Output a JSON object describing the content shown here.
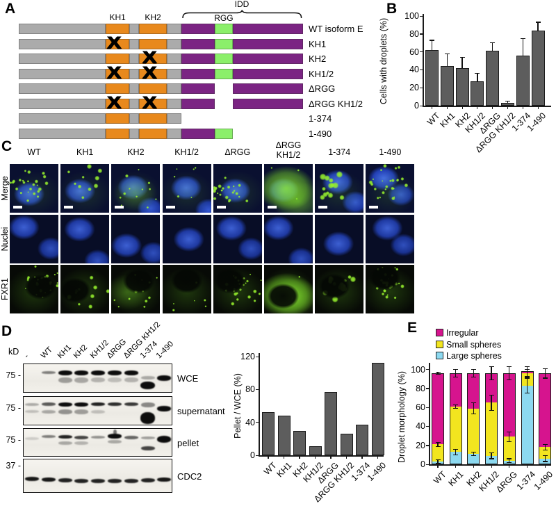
{
  "colors": {
    "domain_gray": "#ababab",
    "domain_orange": "#e8891d",
    "domain_purple": "#7b2483",
    "domain_green": "#8bef6a",
    "bar_gray": "#5d5d5d",
    "magenta": "#d6148e",
    "yellow": "#f2e51f",
    "light_blue": "#8cd9f0",
    "micro_navy": "#0a1030",
    "micro_blue": "#2d55dd",
    "micro_green": "#8cf022"
  },
  "panel_a": {
    "label": "A",
    "idd_label": "IDD",
    "rgg_label": "RGG",
    "kh1_label": "KH1",
    "kh2_label": "KH2",
    "constructs": [
      {
        "label": "WT isoform E",
        "x_kh1": false,
        "x_kh2": false,
        "cterm": "full"
      },
      {
        "label": "KH1",
        "x_kh1": true,
        "x_kh2": false,
        "cterm": "full"
      },
      {
        "label": "KH2",
        "x_kh1": false,
        "x_kh2": true,
        "cterm": "full"
      },
      {
        "label": "KH1/2",
        "x_kh1": true,
        "x_kh2": true,
        "cterm": "full"
      },
      {
        "label": "ΔRGG",
        "x_kh1": false,
        "x_kh2": false,
        "cterm": "delta_rgg"
      },
      {
        "label": "ΔRGG KH1/2",
        "x_kh1": true,
        "x_kh2": true,
        "cterm": "delta_rgg"
      },
      {
        "label": "1-374",
        "x_kh1": false,
        "x_kh2": false,
        "cterm": "end374"
      },
      {
        "label": "1-490",
        "x_kh1": false,
        "x_kh2": false,
        "cterm": "end490"
      }
    ]
  },
  "panel_b": {
    "label": "B"
  },
  "panel_c": {
    "label": "C",
    "columns": [
      {
        "header": "WT",
        "two_line": false,
        "pattern": "puncta_many"
      },
      {
        "header": "KH1",
        "two_line": false,
        "pattern": "puncta_few"
      },
      {
        "header": "KH2",
        "two_line": false,
        "pattern": "diffuse_puncta"
      },
      {
        "header": "KH1/2",
        "two_line": false,
        "pattern": "sparse"
      },
      {
        "header": "ΔRGG",
        "two_line": false,
        "pattern": "puncta_many"
      },
      {
        "header": "ΔRGG KH1/2",
        "two_line": true,
        "pattern": "diffuse"
      },
      {
        "header": "1-374",
        "two_line": false,
        "pattern": "spheres"
      },
      {
        "header": "1-490",
        "two_line": false,
        "pattern": "puncta_many"
      }
    ],
    "rows": [
      {
        "label": "Merge",
        "type": "merge"
      },
      {
        "label": "Nuclei",
        "type": "nuclei"
      },
      {
        "label": "FXR1",
        "type": "green"
      }
    ]
  },
  "panel_d": {
    "label": "D",
    "kd_label": "kD",
    "lanes": [
      "-",
      "WT",
      "KH1",
      "KH2",
      "KH1/2",
      "ΔRGG",
      "ΔRGG KH1/2",
      "1-374",
      "1-490"
    ],
    "blots": [
      {
        "name": "WCE",
        "marker": "75",
        "bands": [
          [
            1,
            0.24,
            0.5,
            4
          ],
          [
            2,
            0.22,
            1,
            7
          ],
          [
            3,
            0.22,
            1,
            7
          ],
          [
            4,
            0.22,
            1,
            7
          ],
          [
            5,
            0.22,
            1,
            7
          ],
          [
            6,
            0.22,
            1,
            7
          ],
          [
            2,
            0.45,
            0.35,
            8
          ],
          [
            3,
            0.45,
            0.3,
            8
          ],
          [
            4,
            0.45,
            0.25,
            7
          ],
          [
            5,
            0.45,
            0.2,
            7
          ],
          [
            6,
            0.45,
            0.25,
            7
          ],
          [
            7,
            0.6,
            1,
            11,
            21
          ],
          [
            7,
            0.4,
            0.3,
            5
          ],
          [
            8,
            0.38,
            1,
            8
          ]
        ]
      },
      {
        "name": "supernatant",
        "marker": "75",
        "bands": [
          [
            0,
            0.22,
            0.3,
            4
          ],
          [
            0,
            0.45,
            0.2,
            4
          ],
          [
            1,
            0.2,
            0.65,
            5
          ],
          [
            1,
            0.45,
            0.3,
            5
          ],
          [
            2,
            0.18,
            1,
            6
          ],
          [
            3,
            0.18,
            1,
            6
          ],
          [
            4,
            0.2,
            0.9,
            5
          ],
          [
            5,
            0.2,
            0.85,
            5
          ],
          [
            6,
            0.2,
            0.8,
            5
          ],
          [
            2,
            0.42,
            0.4,
            7
          ],
          [
            3,
            0.42,
            0.35,
            7
          ],
          [
            4,
            0.45,
            0.2,
            5
          ],
          [
            7,
            0.52,
            1,
            17,
            21
          ],
          [
            7,
            0.2,
            0.45,
            7
          ],
          [
            8,
            0.3,
            1,
            8
          ]
        ]
      },
      {
        "name": "pellet",
        "marker": "75",
        "bands": [
          [
            0,
            0.3,
            0.15,
            4
          ],
          [
            1,
            0.22,
            0.5,
            4
          ],
          [
            2,
            0.22,
            0.9,
            5
          ],
          [
            3,
            0.24,
            0.75,
            5
          ],
          [
            4,
            0.24,
            0.4,
            4
          ],
          [
            5,
            0.16,
            1,
            7
          ],
          [
            5,
            0.02,
            0.55,
            8,
            5
          ],
          [
            6,
            0.24,
            0.6,
            5
          ],
          [
            2,
            0.45,
            0.3,
            5
          ],
          [
            3,
            0.45,
            0.25,
            5
          ],
          [
            5,
            0.4,
            0.3,
            5
          ],
          [
            7,
            0.28,
            0.35,
            4
          ],
          [
            7,
            0.62,
            0.75,
            6
          ],
          [
            8,
            0.24,
            1,
            10
          ]
        ]
      },
      {
        "name": "CDC2",
        "marker": "37",
        "bands": [
          [
            0,
            0.52,
            0.95,
            6
          ],
          [
            1,
            0.54,
            0.95,
            6
          ],
          [
            2,
            0.56,
            0.9,
            6
          ],
          [
            3,
            0.57,
            0.9,
            6
          ],
          [
            4,
            0.58,
            0.9,
            6
          ],
          [
            5,
            0.58,
            0.9,
            6
          ],
          [
            6,
            0.57,
            0.9,
            6
          ],
          [
            7,
            0.55,
            0.9,
            6
          ],
          [
            8,
            0.53,
            0.95,
            6
          ]
        ]
      }
    ]
  },
  "panel_e": {
    "label": "E"
  },
  "chart_data": [
    {
      "id": "panel_b_bar",
      "type": "bar",
      "categories": [
        "WT",
        "KH1",
        "KH2",
        "KH1/2",
        "ΔRGG",
        "ΔRGG KH1/2",
        "1-374",
        "1-490"
      ],
      "values": [
        62,
        44,
        42,
        27,
        61,
        3,
        56,
        84
      ],
      "errors": [
        11,
        14,
        12,
        9,
        9,
        2,
        19,
        9
      ],
      "ylabel": "Cells with droplets (%)",
      "ylim": [
        0,
        100
      ],
      "yticks": [
        0,
        20,
        40,
        60,
        80,
        100
      ],
      "grid": false,
      "legend_position": "none"
    },
    {
      "id": "panel_d_bar",
      "type": "bar",
      "categories": [
        "WT",
        "KH1",
        "KH2",
        "KH1/2",
        "ΔRGG",
        "ΔRGG KH1/2",
        "1-374",
        "1-490"
      ],
      "values": [
        52,
        48,
        30,
        11,
        77,
        26,
        37,
        112
      ],
      "errors": [
        0,
        0,
        0,
        0,
        0,
        0,
        0,
        0
      ],
      "ylabel": "Pellet / WCE (%)",
      "ylim": [
        0,
        120
      ],
      "yticks": [
        0,
        40,
        80,
        120
      ],
      "grid": false,
      "legend_position": "none"
    },
    {
      "id": "panel_e_stacked",
      "type": "stacked_bar",
      "categories": [
        "WT",
        "KH1",
        "KH2",
        "KH1/2",
        "ΔRGG",
        "1-374",
        "1-490"
      ],
      "series": [
        {
          "name": "Large spheres",
          "color_key": "light_blue",
          "values": [
            3,
            13,
            11,
            9,
            4,
            83,
            6
          ],
          "errors": [
            2,
            3,
            2,
            3,
            2,
            8,
            3
          ]
        },
        {
          "name": "Small spheres",
          "color_key": "yellow",
          "values": [
            18,
            48,
            48,
            56,
            25,
            13,
            12
          ],
          "errors": [
            2,
            2,
            6,
            8,
            5,
            4,
            3
          ]
        },
        {
          "name": "Irregular",
          "color_key": "magenta",
          "values": [
            75,
            35,
            37,
            31,
            67,
            2,
            78
          ],
          "errors": [
            1,
            4,
            4,
            7,
            7,
            5,
            5
          ]
        }
      ],
      "ylabel": "Droplet morphology (%)",
      "ylim": [
        0,
        100
      ],
      "yticks": [
        0,
        20,
        40,
        60,
        80,
        100
      ],
      "grid": false,
      "legend_position": "top"
    }
  ]
}
